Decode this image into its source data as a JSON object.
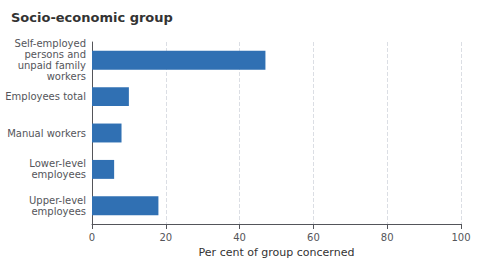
{
  "chart_data": {
    "type": "bar",
    "orientation": "horizontal",
    "title": "Socio-economic group",
    "xlabel": "Per cent of group concerned",
    "categories": [
      "Upper-level\nemployees",
      "Lower-level\nemployees",
      "Manual workers",
      "Employees total",
      "Self-employed\npersons and\nunpaid family\nworkers"
    ],
    "values": [
      18,
      6,
      8,
      10,
      47
    ],
    "color": "#3070b3",
    "xlim": [
      0,
      100
    ],
    "xticks": [
      0,
      20,
      40,
      60,
      80,
      100
    ],
    "grid": true
  }
}
